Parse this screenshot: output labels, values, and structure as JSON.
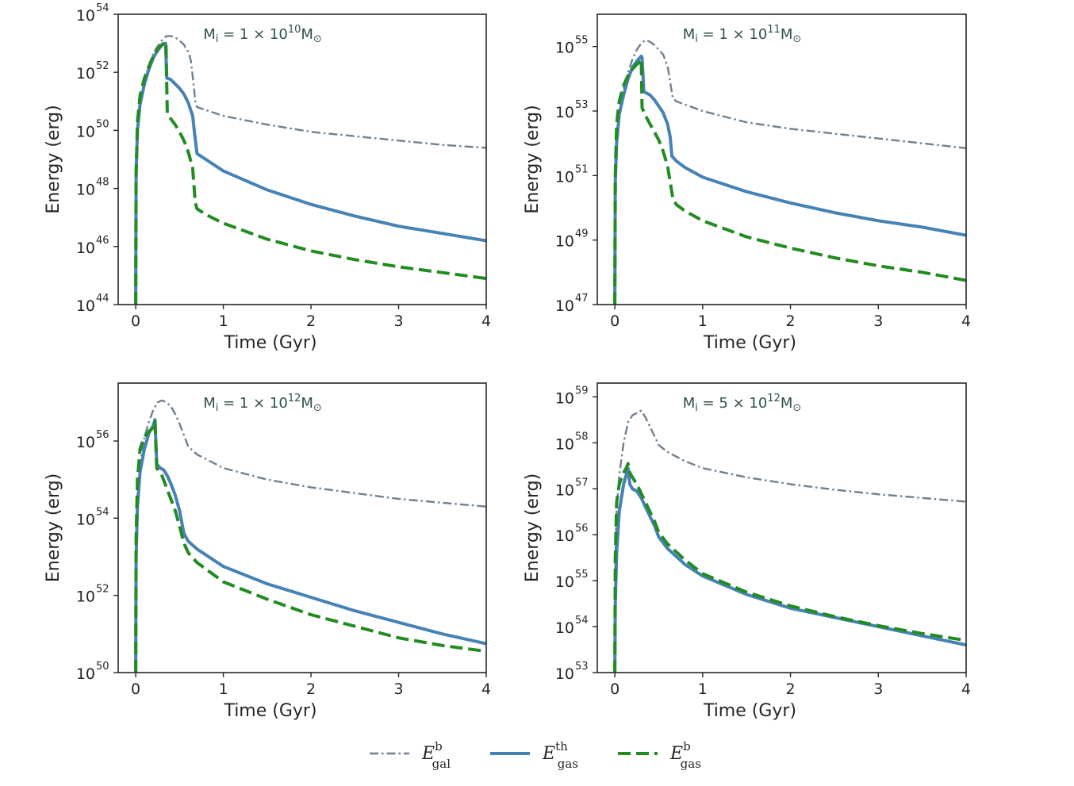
{
  "legend": {
    "placement": "bottom-center",
    "entries": [
      {
        "symbol": "E",
        "sup": "b",
        "sub": "gal",
        "color": "#708090",
        "style": "dashdot"
      },
      {
        "symbol": "E",
        "sup": "th",
        "sub": "gas",
        "color": "#4682b4",
        "style": "solid"
      },
      {
        "symbol": "E",
        "sup": "b",
        "sub": "gas",
        "color": "#228b22",
        "style": "dashed"
      }
    ]
  },
  "chart_data": [
    {
      "type": "line",
      "title": "M_i = 1 × 10^10 M_⊙",
      "title_parts": {
        "label": "M",
        "label_sub": "i",
        "eq": " = 1 × 10",
        "exp": "10",
        "unit": "M",
        "unit_sub": "⊙"
      },
      "xlabel": "Time (Gyr)",
      "ylabel": "Energy (erg)",
      "xlim": [
        -0.2,
        4.0
      ],
      "ylim_log10": [
        44,
        54
      ],
      "yscale": "log",
      "xticks": [
        0,
        1,
        2,
        3,
        4
      ],
      "yticks": [
        {
          "base": "10",
          "exp": "44",
          "v": 44
        },
        {
          "base": "10",
          "exp": "46",
          "v": 46
        },
        {
          "base": "10",
          "exp": "48",
          "v": 48
        },
        {
          "base": "10",
          "exp": "50",
          "v": 50
        },
        {
          "base": "10",
          "exp": "52",
          "v": 52
        },
        {
          "base": "10",
          "exp": "54",
          "v": 54
        }
      ],
      "series": [
        {
          "ref": "E_gal_b",
          "style": "dashdot",
          "color": "#708090",
          "x": [
            0.0,
            0.005,
            0.02,
            0.05,
            0.1,
            0.15,
            0.2,
            0.25,
            0.3,
            0.35,
            0.4,
            0.45,
            0.5,
            0.55,
            0.6,
            0.63,
            0.66,
            0.68,
            0.7,
            1.0,
            1.5,
            2.0,
            2.5,
            3.0,
            3.5,
            4.0
          ],
          "log10": [
            44.0,
            48.5,
            50.0,
            50.9,
            51.7,
            52.25,
            52.65,
            52.9,
            53.1,
            53.25,
            53.25,
            53.2,
            53.1,
            52.95,
            52.7,
            52.4,
            51.6,
            51.0,
            50.8,
            50.5,
            50.2,
            49.95,
            49.8,
            49.65,
            49.5,
            49.4
          ]
        },
        {
          "ref": "E_gas_th",
          "style": "solid",
          "color": "#4682b4",
          "x": [
            0.0,
            0.005,
            0.02,
            0.05,
            0.1,
            0.15,
            0.2,
            0.25,
            0.3,
            0.34,
            0.355,
            0.4,
            0.45,
            0.5,
            0.55,
            0.6,
            0.65,
            0.675,
            0.7,
            0.8,
            1.0,
            1.5,
            2.0,
            2.5,
            3.0,
            3.5,
            4.0
          ],
          "log10": [
            44.0,
            48.5,
            50.0,
            50.9,
            51.6,
            52.1,
            52.5,
            52.75,
            52.95,
            53.0,
            51.8,
            51.75,
            51.6,
            51.45,
            51.25,
            50.95,
            50.5,
            49.8,
            49.2,
            49.0,
            48.6,
            47.95,
            47.45,
            47.05,
            46.7,
            46.45,
            46.2
          ]
        },
        {
          "ref": "E_gas_b",
          "style": "dashed",
          "color": "#228b22",
          "x": [
            0.0,
            0.005,
            0.02,
            0.05,
            0.1,
            0.15,
            0.2,
            0.25,
            0.3,
            0.345,
            0.36,
            0.4,
            0.45,
            0.5,
            0.55,
            0.6,
            0.65,
            0.68,
            0.7,
            0.8,
            1.0,
            1.5,
            2.0,
            2.5,
            3.0,
            3.5,
            4.0
          ],
          "log10": [
            44.0,
            48.5,
            50.3,
            51.2,
            51.8,
            52.2,
            52.55,
            52.8,
            52.95,
            53.05,
            50.6,
            50.4,
            50.2,
            49.95,
            49.65,
            49.25,
            48.7,
            47.5,
            47.3,
            47.1,
            46.8,
            46.25,
            45.85,
            45.55,
            45.3,
            45.1,
            44.9
          ]
        }
      ]
    },
    {
      "type": "line",
      "title": "M_i = 1 × 10^11 M_⊙",
      "title_parts": {
        "label": "M",
        "label_sub": "i",
        "eq": " = 1 × 10",
        "exp": "11",
        "unit": "M",
        "unit_sub": "⊙"
      },
      "xlabel": "Time (Gyr)",
      "ylabel": "Energy (erg)",
      "xlim": [
        -0.2,
        4.0
      ],
      "ylim_log10": [
        47,
        56
      ],
      "yscale": "log",
      "xticks": [
        0,
        1,
        2,
        3,
        4
      ],
      "yticks": [
        {
          "base": "10",
          "exp": "47",
          "v": 47
        },
        {
          "base": "10",
          "exp": "49",
          "v": 49
        },
        {
          "base": "10",
          "exp": "51",
          "v": 51
        },
        {
          "base": "10",
          "exp": "53",
          "v": 53
        },
        {
          "base": "10",
          "exp": "55",
          "v": 55
        }
      ],
      "series": [
        {
          "ref": "E_gal_b",
          "style": "dashdot",
          "color": "#708090",
          "x": [
            0.0,
            0.005,
            0.02,
            0.05,
            0.1,
            0.15,
            0.2,
            0.25,
            0.3,
            0.35,
            0.4,
            0.45,
            0.5,
            0.55,
            0.6,
            0.63,
            0.66,
            0.7,
            1.0,
            1.5,
            2.0,
            2.5,
            3.0,
            3.5,
            4.0
          ],
          "log10": [
            47.0,
            51.5,
            52.3,
            53.0,
            53.7,
            54.2,
            54.6,
            54.9,
            55.1,
            55.2,
            55.15,
            55.05,
            54.9,
            54.75,
            54.4,
            53.9,
            53.4,
            53.3,
            53.0,
            52.65,
            52.45,
            52.3,
            52.15,
            52.0,
            51.85
          ]
        },
        {
          "ref": "E_gas_th",
          "style": "solid",
          "color": "#4682b4",
          "x": [
            0.0,
            0.005,
            0.02,
            0.05,
            0.1,
            0.15,
            0.2,
            0.25,
            0.3,
            0.31,
            0.33,
            0.4,
            0.45,
            0.5,
            0.55,
            0.6,
            0.63,
            0.65,
            0.7,
            0.8,
            1.0,
            1.5,
            2.0,
            2.5,
            3.0,
            3.5,
            4.0
          ],
          "log10": [
            47.0,
            50.8,
            52.0,
            52.9,
            53.5,
            54.0,
            54.35,
            54.55,
            54.7,
            54.65,
            53.6,
            53.5,
            53.35,
            53.15,
            52.95,
            52.6,
            52.2,
            51.6,
            51.45,
            51.25,
            50.95,
            50.5,
            50.15,
            49.85,
            49.6,
            49.4,
            49.15
          ]
        },
        {
          "ref": "E_gas_b",
          "style": "dashed",
          "color": "#228b22",
          "x": [
            0.0,
            0.005,
            0.02,
            0.05,
            0.1,
            0.15,
            0.2,
            0.25,
            0.3,
            0.3,
            0.31,
            0.35,
            0.4,
            0.45,
            0.5,
            0.55,
            0.6,
            0.63,
            0.66,
            0.7,
            0.8,
            1.0,
            1.5,
            2.0,
            2.5,
            3.0,
            3.5,
            4.0
          ],
          "log10": [
            47.0,
            51.0,
            52.6,
            53.3,
            53.8,
            54.1,
            54.3,
            54.45,
            54.55,
            54.6,
            53.1,
            52.85,
            52.6,
            52.35,
            52.1,
            51.75,
            51.3,
            50.8,
            50.3,
            50.1,
            49.9,
            49.6,
            49.1,
            48.75,
            48.45,
            48.2,
            48.0,
            47.75
          ]
        }
      ]
    },
    {
      "type": "line",
      "title": "M_i = 1 × 10^12 M_⊙",
      "title_parts": {
        "label": "M",
        "label_sub": "i",
        "eq": " = 1 × 10",
        "exp": "12",
        "unit": "M",
        "unit_sub": "⊙"
      },
      "xlabel": "Time (Gyr)",
      "ylabel": "Energy (erg)",
      "xlim": [
        -0.2,
        4.0
      ],
      "ylim_log10": [
        50,
        57.5
      ],
      "yscale": "log",
      "xticks": [
        0,
        1,
        2,
        3,
        4
      ],
      "yticks": [
        {
          "base": "10",
          "exp": "50",
          "v": 50
        },
        {
          "base": "10",
          "exp": "52",
          "v": 52
        },
        {
          "base": "10",
          "exp": "54",
          "v": 54
        },
        {
          "base": "10",
          "exp": "56",
          "v": 56
        }
      ],
      "series": [
        {
          "ref": "E_gal_b",
          "style": "dashdot",
          "color": "#708090",
          "x": [
            0.0,
            0.005,
            0.02,
            0.05,
            0.1,
            0.15,
            0.2,
            0.25,
            0.3,
            0.35,
            0.4,
            0.45,
            0.5,
            0.55,
            0.6,
            0.7,
            1.0,
            1.5,
            2.0,
            2.5,
            3.0,
            3.5,
            4.0
          ],
          "log10": [
            50.0,
            53.5,
            54.6,
            55.4,
            56.1,
            56.5,
            56.8,
            57.0,
            57.05,
            57.0,
            56.9,
            56.7,
            56.45,
            56.15,
            55.85,
            55.65,
            55.3,
            55.0,
            54.8,
            54.65,
            54.5,
            54.4,
            54.3
          ]
        },
        {
          "ref": "E_gas_th",
          "style": "solid",
          "color": "#4682b4",
          "x": [
            0.0,
            0.005,
            0.02,
            0.05,
            0.1,
            0.15,
            0.2,
            0.22,
            0.24,
            0.28,
            0.32,
            0.36,
            0.4,
            0.45,
            0.5,
            0.55,
            0.6,
            0.7,
            1.0,
            1.5,
            2.0,
            2.5,
            3.0,
            3.5,
            4.0
          ],
          "log10": [
            50.0,
            53.0,
            54.3,
            55.2,
            55.8,
            56.2,
            56.4,
            56.55,
            55.4,
            55.3,
            55.25,
            55.1,
            54.9,
            54.6,
            54.2,
            53.6,
            53.4,
            53.2,
            52.75,
            52.3,
            51.95,
            51.6,
            51.3,
            51.0,
            50.75
          ]
        },
        {
          "ref": "E_gas_b",
          "style": "dashed",
          "color": "#228b22",
          "x": [
            0.0,
            0.005,
            0.02,
            0.05,
            0.1,
            0.15,
            0.2,
            0.22,
            0.24,
            0.3,
            0.35,
            0.4,
            0.45,
            0.5,
            0.55,
            0.6,
            0.7,
            1.0,
            1.5,
            2.0,
            2.5,
            3.0,
            3.5,
            4.0
          ],
          "log10": [
            50.0,
            53.5,
            55.0,
            55.8,
            56.1,
            56.25,
            56.35,
            56.5,
            55.3,
            55.1,
            54.8,
            54.5,
            54.2,
            53.8,
            53.35,
            53.1,
            52.85,
            52.35,
            51.9,
            51.5,
            51.2,
            50.9,
            50.7,
            50.55
          ]
        }
      ]
    },
    {
      "type": "line",
      "title": "M_i = 5 × 10^12 M_⊙",
      "title_parts": {
        "label": "M",
        "label_sub": "i",
        "eq": " = 5 × 10",
        "exp": "12",
        "unit": "M",
        "unit_sub": "⊙"
      },
      "xlabel": "Time (Gyr)",
      "ylabel": "Energy (erg)",
      "xlim": [
        -0.2,
        4.0
      ],
      "ylim_log10": [
        53,
        59.3
      ],
      "yscale": "log",
      "xticks": [
        0,
        1,
        2,
        3,
        4
      ],
      "yticks": [
        {
          "base": "10",
          "exp": "53",
          "v": 53
        },
        {
          "base": "10",
          "exp": "54",
          "v": 54
        },
        {
          "base": "10",
          "exp": "55",
          "v": 55
        },
        {
          "base": "10",
          "exp": "56",
          "v": 56
        },
        {
          "base": "10",
          "exp": "57",
          "v": 57
        },
        {
          "base": "10",
          "exp": "58",
          "v": 58
        },
        {
          "base": "10",
          "exp": "59",
          "v": 59
        }
      ],
      "series": [
        {
          "ref": "E_gal_b",
          "style": "dashdot",
          "color": "#708090",
          "x": [
            0.0,
            0.005,
            0.02,
            0.05,
            0.1,
            0.15,
            0.2,
            0.25,
            0.3,
            0.35,
            0.4,
            0.45,
            0.5,
            0.6,
            0.8,
            1.0,
            1.5,
            2.0,
            2.5,
            3.0,
            3.5,
            4.0
          ],
          "log10": [
            53.0,
            55.5,
            56.5,
            57.3,
            58.0,
            58.45,
            58.6,
            58.65,
            58.7,
            58.55,
            58.35,
            58.15,
            57.95,
            57.8,
            57.6,
            57.45,
            57.25,
            57.1,
            56.98,
            56.88,
            56.8,
            56.72
          ]
        },
        {
          "ref": "E_gas_th",
          "style": "solid",
          "color": "#4682b4",
          "x": [
            0.0,
            0.005,
            0.02,
            0.05,
            0.1,
            0.13,
            0.15,
            0.17,
            0.2,
            0.25,
            0.3,
            0.35,
            0.4,
            0.45,
            0.5,
            0.6,
            0.8,
            1.0,
            1.5,
            2.0,
            2.5,
            3.0,
            3.5,
            4.0
          ],
          "log10": [
            53.0,
            54.5,
            55.6,
            56.5,
            57.1,
            57.3,
            57.45,
            57.1,
            57.0,
            56.95,
            56.8,
            56.6,
            56.4,
            56.2,
            55.95,
            55.7,
            55.35,
            55.1,
            54.7,
            54.4,
            54.2,
            54.0,
            53.8,
            53.6
          ]
        },
        {
          "ref": "E_gas_b",
          "style": "dashed",
          "color": "#228b22",
          "x": [
            0.0,
            0.005,
            0.02,
            0.05,
            0.1,
            0.13,
            0.15,
            0.17,
            0.2,
            0.25,
            0.3,
            0.35,
            0.4,
            0.45,
            0.5,
            0.6,
            0.8,
            1.0,
            1.5,
            2.0,
            2.5,
            3.0,
            3.5,
            4.0
          ],
          "log10": [
            53.0,
            55.5,
            56.7,
            57.1,
            57.35,
            57.45,
            57.55,
            57.35,
            57.25,
            57.1,
            56.9,
            56.7,
            56.5,
            56.3,
            56.05,
            55.8,
            55.45,
            55.15,
            54.75,
            54.45,
            54.22,
            54.02,
            53.85,
            53.7
          ]
        }
      ]
    }
  ]
}
